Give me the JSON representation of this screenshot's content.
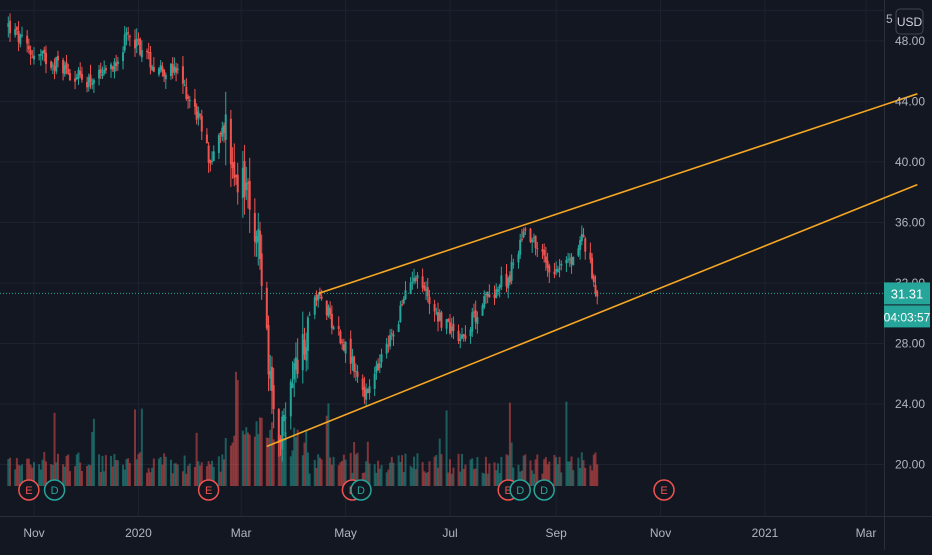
{
  "chart_data": {
    "type": "candlestick",
    "currency": "USD",
    "price_axis": {
      "ticks": [
        48.0,
        44.0,
        40.0,
        36.0,
        32.0,
        28.0,
        24.0,
        20.0
      ],
      "tick_labels": [
        "48.00",
        "44.00",
        "40.00",
        "36.00",
        "32.00",
        "28.00",
        "24.00",
        "20.00"
      ],
      "partial_top_label": "5",
      "range": [
        16.6,
        50.7
      ]
    },
    "time_axis": {
      "labels": [
        "Nov",
        "2020",
        "Mar",
        "May",
        "Jul",
        "Sep",
        "Nov",
        "2021",
        "Mar"
      ],
      "grid": true
    },
    "last_price": {
      "value": 31.31,
      "label": "31.31",
      "color": "#26a69a"
    },
    "countdown": {
      "label": "04:03:57"
    },
    "earnings_markers": [
      "E",
      "E",
      "E",
      "E",
      "E"
    ],
    "dividend_markers": [
      "D",
      "D",
      "D",
      "D"
    ],
    "colors": {
      "up": "#26a69a",
      "down": "#ef5350",
      "trendline": "#f5a623",
      "background": "#131722",
      "grid": "#1e2230"
    },
    "trendlines": [
      {
        "name": "upper channel",
        "start": {
          "date": "2020-04-15",
          "price": 31.3
        },
        "end": {
          "date": "2021-03-31",
          "price": 44.5
        }
      },
      {
        "name": "lower channel",
        "start": {
          "date": "2020-03-16",
          "price": 21.2
        },
        "end": {
          "date": "2021-03-31",
          "price": 38.5
        }
      }
    ],
    "price_path": [
      {
        "date": "2019-10-17",
        "close": 49.0
      },
      {
        "date": "2019-10-30",
        "close": 47.2
      },
      {
        "date": "2019-11-15",
        "close": 46.5
      },
      {
        "date": "2019-11-29",
        "close": 45.4
      },
      {
        "date": "2019-12-13",
        "close": 45.6
      },
      {
        "date": "2019-12-27",
        "close": 48.5
      },
      {
        "date": "2020-01-10",
        "close": 46.4
      },
      {
        "date": "2020-01-24",
        "close": 45.8
      },
      {
        "date": "2020-02-05",
        "close": 43.0
      },
      {
        "date": "2020-02-12",
        "close": 40.0
      },
      {
        "date": "2020-02-21",
        "close": 42.5
      },
      {
        "date": "2020-02-27",
        "close": 39.0
      },
      {
        "date": "2020-03-06",
        "close": 37.8
      },
      {
        "date": "2020-03-12",
        "close": 34.0
      },
      {
        "date": "2020-03-18",
        "close": 25.0
      },
      {
        "date": "2020-03-23",
        "close": 21.5
      },
      {
        "date": "2020-04-01",
        "close": 26.5
      },
      {
        "date": "2020-04-15",
        "close": 31.3
      },
      {
        "date": "2020-04-30",
        "close": 28.0
      },
      {
        "date": "2020-05-13",
        "close": 24.5
      },
      {
        "date": "2020-05-28",
        "close": 28.5
      },
      {
        "date": "2020-06-10",
        "close": 32.8
      },
      {
        "date": "2020-06-26",
        "close": 29.5
      },
      {
        "date": "2020-07-08",
        "close": 28.5
      },
      {
        "date": "2020-07-22",
        "close": 31.0
      },
      {
        "date": "2020-08-05",
        "close": 32.5
      },
      {
        "date": "2020-08-14",
        "close": 35.8
      },
      {
        "date": "2020-08-28",
        "close": 33.0
      },
      {
        "date": "2020-09-11",
        "close": 33.5
      },
      {
        "date": "2020-09-16",
        "close": 35.2
      },
      {
        "date": "2020-09-25",
        "close": 31.31
      }
    ]
  }
}
